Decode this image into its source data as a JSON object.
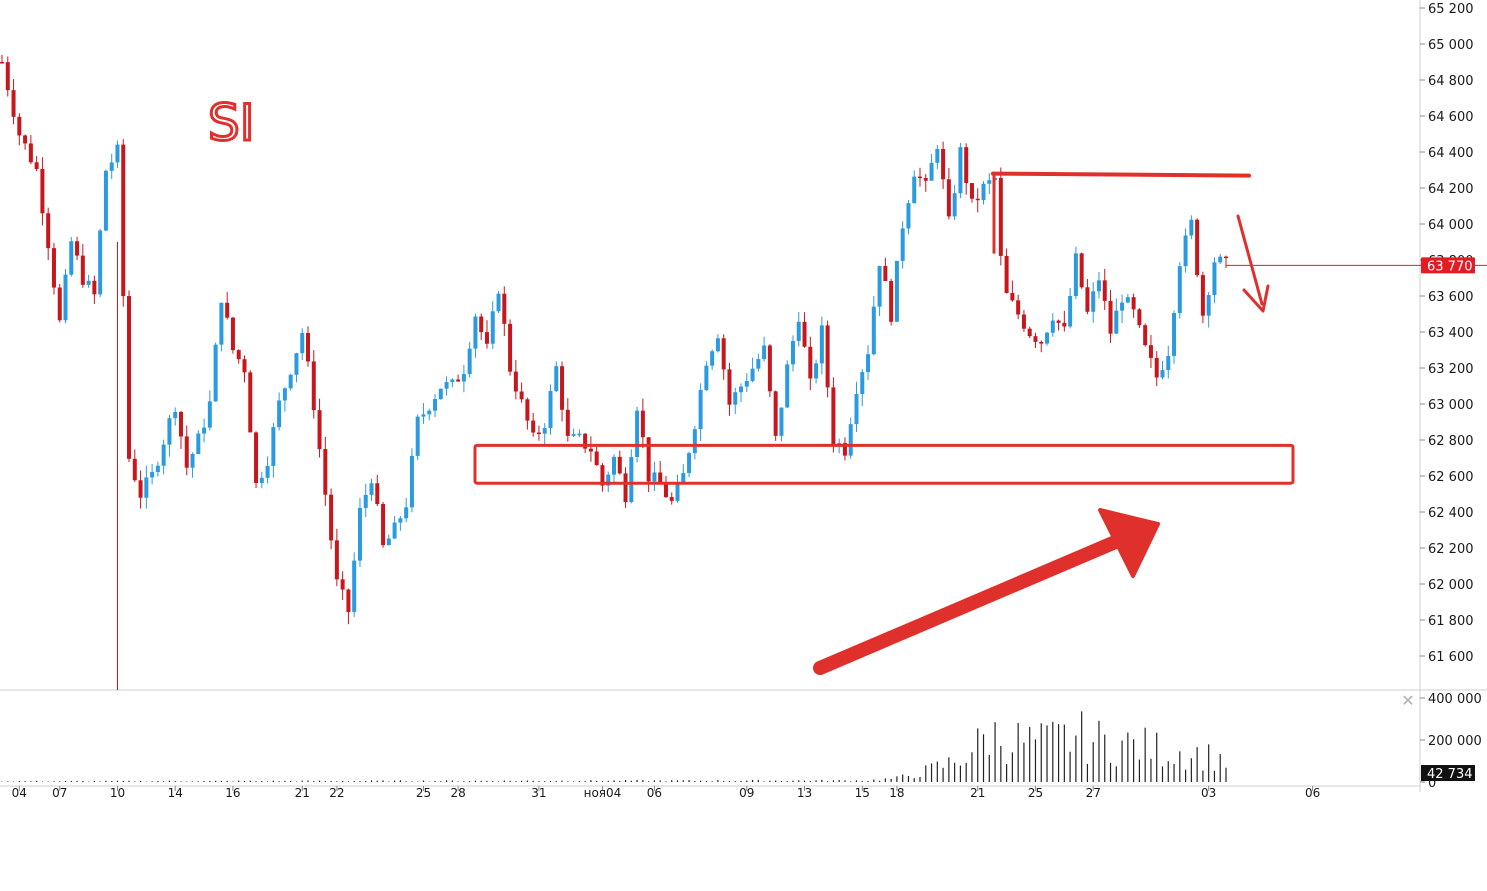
{
  "symbol": "SI",
  "last_price_label": "63 770",
  "last_volume_label": "42 734",
  "colors": {
    "up": "#2a9be0",
    "down": "#c8161d",
    "annotation": "#e0302b",
    "axis_text": "#1a1a1a",
    "last_price_badge": "#e31b23",
    "last_volume_badge": "#111111"
  },
  "close_icon": "close-icon",
  "chart_data": {
    "type": "candlestick",
    "title": "SI",
    "price_axis": {
      "min": 61500,
      "max": 65250,
      "ticks": [
        "65 200",
        "65 000",
        "64 800",
        "64 600",
        "64 400",
        "64 200",
        "64 000",
        "63 800",
        "63 600",
        "63 400",
        "63 200",
        "63 000",
        "62 800",
        "62 600",
        "62 400",
        "62 200",
        "62 000",
        "61 800",
        "61 600"
      ],
      "tick_values": [
        65200,
        65000,
        64800,
        64600,
        64400,
        64200,
        64000,
        63800,
        63600,
        63400,
        63200,
        63000,
        62800,
        62600,
        62400,
        62200,
        62000,
        61800,
        61600
      ]
    },
    "volume_axis": {
      "min": 0,
      "max": 420000,
      "ticks": [
        "400 000",
        "200 000",
        "0"
      ],
      "tick_values": [
        400000,
        200000,
        0
      ]
    },
    "time_axis": {
      "count": 213,
      "ticks": [
        "04",
        "07",
        "10",
        "14",
        "16",
        "21",
        "22",
        "25",
        "28",
        "31",
        "ноя04",
        "06",
        "09",
        "13",
        "15",
        "18",
        "21",
        "25",
        "27",
        "03",
        "06"
      ],
      "tick_index": [
        3,
        10,
        20,
        30,
        40,
        52,
        58,
        73,
        79,
        93,
        104,
        113,
        129,
        139,
        149,
        155,
        169,
        179,
        189,
        209,
        227
      ]
    },
    "last_price": 63770,
    "last_volume": 42734,
    "anchors": [
      [
        0,
        64900
      ],
      [
        3,
        64500
      ],
      [
        6,
        64300
      ],
      [
        8,
        63900
      ],
      [
        10,
        63450
      ],
      [
        12,
        63900
      ],
      [
        14,
        63700
      ],
      [
        16,
        63600
      ],
      [
        18,
        64300
      ],
      [
        20,
        64400
      ],
      [
        21,
        63600
      ],
      [
        22,
        62700
      ],
      [
        24,
        62500
      ],
      [
        26,
        62600
      ],
      [
        28,
        62800
      ],
      [
        30,
        63000
      ],
      [
        32,
        62650
      ],
      [
        34,
        62800
      ],
      [
        36,
        63000
      ],
      [
        38,
        63600
      ],
      [
        40,
        63300
      ],
      [
        42,
        63200
      ],
      [
        44,
        62550
      ],
      [
        46,
        62700
      ],
      [
        48,
        63000
      ],
      [
        50,
        63200
      ],
      [
        52,
        63400
      ],
      [
        54,
        63000
      ],
      [
        56,
        62500
      ],
      [
        58,
        62000
      ],
      [
        60,
        61850
      ],
      [
        62,
        62400
      ],
      [
        64,
        62600
      ],
      [
        66,
        62200
      ],
      [
        68,
        62300
      ],
      [
        70,
        62450
      ],
      [
        72,
        62900
      ],
      [
        74,
        63000
      ],
      [
        76,
        63100
      ],
      [
        78,
        63100
      ],
      [
        80,
        63200
      ],
      [
        82,
        63500
      ],
      [
        84,
        63300
      ],
      [
        86,
        63650
      ],
      [
        88,
        63200
      ],
      [
        90,
        63000
      ],
      [
        92,
        62800
      ],
      [
        94,
        62900
      ],
      [
        96,
        63200
      ],
      [
        98,
        62800
      ],
      [
        100,
        62800
      ],
      [
        102,
        62750
      ],
      [
        104,
        62550
      ],
      [
        106,
        62700
      ],
      [
        108,
        62500
      ],
      [
        110,
        63000
      ],
      [
        112,
        62600
      ],
      [
        114,
        62550
      ],
      [
        116,
        62450
      ],
      [
        118,
        62600
      ],
      [
        120,
        62900
      ],
      [
        122,
        63250
      ],
      [
        124,
        63400
      ],
      [
        126,
        63000
      ],
      [
        128,
        63100
      ],
      [
        130,
        63200
      ],
      [
        132,
        63300
      ],
      [
        134,
        62800
      ],
      [
        136,
        63200
      ],
      [
        138,
        63500
      ],
      [
        140,
        63100
      ],
      [
        142,
        63400
      ],
      [
        144,
        62800
      ],
      [
        146,
        62750
      ],
      [
        148,
        63100
      ],
      [
        150,
        63300
      ],
      [
        152,
        63800
      ],
      [
        154,
        63500
      ],
      [
        156,
        64000
      ],
      [
        158,
        64300
      ],
      [
        160,
        64200
      ],
      [
        162,
        64450
      ],
      [
        164,
        64000
      ],
      [
        166,
        64400
      ],
      [
        168,
        64100
      ],
      [
        170,
        64200
      ],
      [
        172,
        64250
      ],
      [
        173,
        63800
      ],
      [
        174,
        63600
      ],
      [
        176,
        63500
      ],
      [
        178,
        63400
      ],
      [
        180,
        63350
      ],
      [
        182,
        63500
      ],
      [
        184,
        63400
      ],
      [
        186,
        63800
      ],
      [
        188,
        63500
      ],
      [
        190,
        63700
      ],
      [
        192,
        63400
      ],
      [
        194,
        63600
      ],
      [
        196,
        63500
      ],
      [
        198,
        63300
      ],
      [
        200,
        63150
      ],
      [
        202,
        63300
      ],
      [
        204,
        63800
      ],
      [
        206,
        64000
      ],
      [
        208,
        63500
      ],
      [
        210,
        63800
      ],
      [
        212,
        63770
      ]
    ],
    "volume_profile": [
      [
        0,
        4000
      ],
      [
        150,
        8000
      ],
      [
        155,
        20000
      ],
      [
        160,
        60000
      ],
      [
        165,
        110000
      ],
      [
        169,
        200000
      ],
      [
        171,
        260000
      ],
      [
        174,
        230000
      ],
      [
        180,
        210000
      ],
      [
        186,
        250000
      ],
      [
        190,
        220000
      ],
      [
        196,
        200000
      ],
      [
        202,
        170000
      ],
      [
        206,
        160000
      ],
      [
        212,
        120000
      ]
    ],
    "annotations": {
      "resistance_line_price": 64280,
      "support_zone": [
        62560,
        62770
      ]
    }
  }
}
